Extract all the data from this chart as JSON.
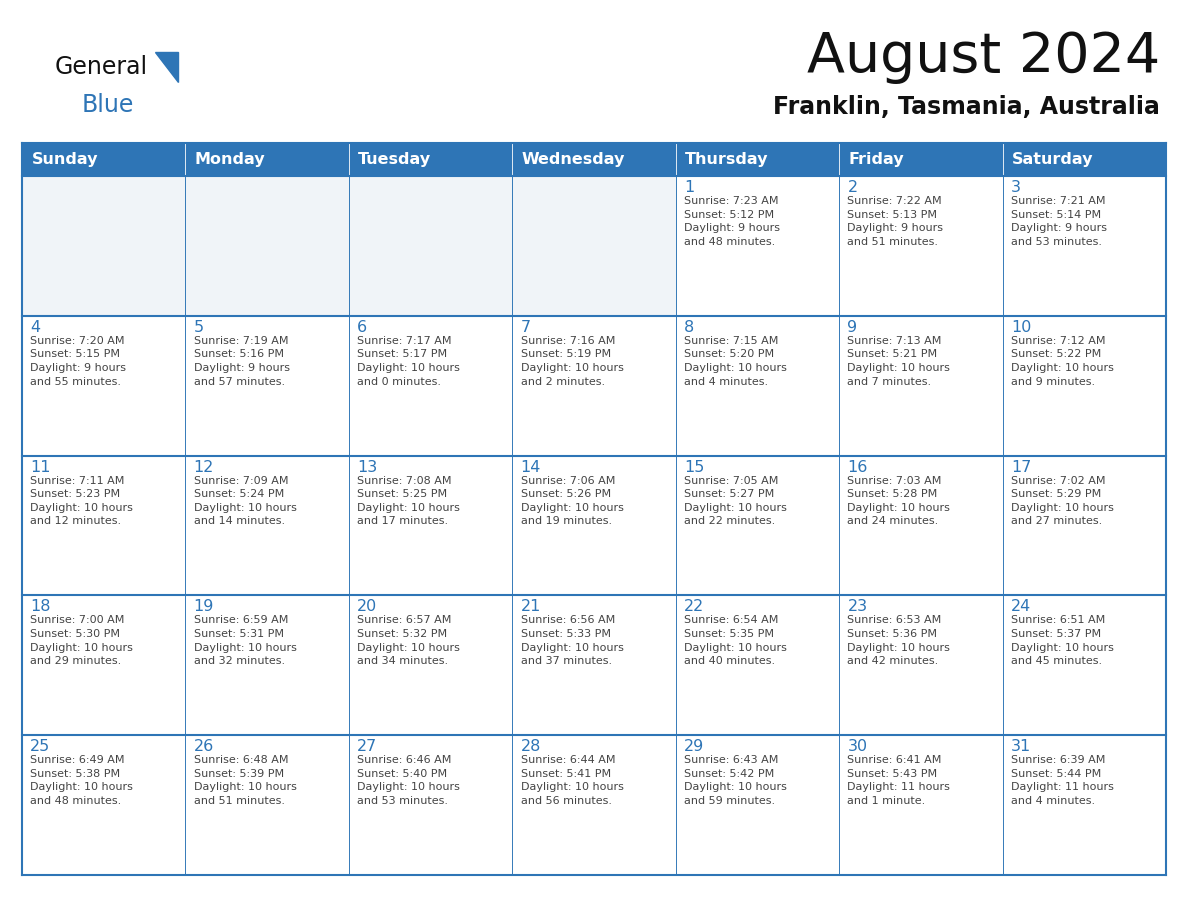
{
  "title": "August 2024",
  "subtitle": "Franklin, Tasmania, Australia",
  "days_of_week": [
    "Sunday",
    "Monday",
    "Tuesday",
    "Wednesday",
    "Thursday",
    "Friday",
    "Saturday"
  ],
  "header_bg": "#2E75B6",
  "header_text": "#FFFFFF",
  "cell_bg": "#FFFFFF",
  "cell_border": "#2E75B6",
  "day_num_color": "#2E75B6",
  "cell_text_color": "#444444",
  "title_color": "#111111",
  "subtitle_color": "#111111",
  "logo_general_color": "#111111",
  "logo_blue_color": "#2E75B6",
  "logo_triangle_color": "#2E75B6",
  "weeks": [
    [
      {
        "day": null,
        "text": ""
      },
      {
        "day": null,
        "text": ""
      },
      {
        "day": null,
        "text": ""
      },
      {
        "day": null,
        "text": ""
      },
      {
        "day": 1,
        "text": "Sunrise: 7:23 AM\nSunset: 5:12 PM\nDaylight: 9 hours\nand 48 minutes."
      },
      {
        "day": 2,
        "text": "Sunrise: 7:22 AM\nSunset: 5:13 PM\nDaylight: 9 hours\nand 51 minutes."
      },
      {
        "day": 3,
        "text": "Sunrise: 7:21 AM\nSunset: 5:14 PM\nDaylight: 9 hours\nand 53 minutes."
      }
    ],
    [
      {
        "day": 4,
        "text": "Sunrise: 7:20 AM\nSunset: 5:15 PM\nDaylight: 9 hours\nand 55 minutes."
      },
      {
        "day": 5,
        "text": "Sunrise: 7:19 AM\nSunset: 5:16 PM\nDaylight: 9 hours\nand 57 minutes."
      },
      {
        "day": 6,
        "text": "Sunrise: 7:17 AM\nSunset: 5:17 PM\nDaylight: 10 hours\nand 0 minutes."
      },
      {
        "day": 7,
        "text": "Sunrise: 7:16 AM\nSunset: 5:19 PM\nDaylight: 10 hours\nand 2 minutes."
      },
      {
        "day": 8,
        "text": "Sunrise: 7:15 AM\nSunset: 5:20 PM\nDaylight: 10 hours\nand 4 minutes."
      },
      {
        "day": 9,
        "text": "Sunrise: 7:13 AM\nSunset: 5:21 PM\nDaylight: 10 hours\nand 7 minutes."
      },
      {
        "day": 10,
        "text": "Sunrise: 7:12 AM\nSunset: 5:22 PM\nDaylight: 10 hours\nand 9 minutes."
      }
    ],
    [
      {
        "day": 11,
        "text": "Sunrise: 7:11 AM\nSunset: 5:23 PM\nDaylight: 10 hours\nand 12 minutes."
      },
      {
        "day": 12,
        "text": "Sunrise: 7:09 AM\nSunset: 5:24 PM\nDaylight: 10 hours\nand 14 minutes."
      },
      {
        "day": 13,
        "text": "Sunrise: 7:08 AM\nSunset: 5:25 PM\nDaylight: 10 hours\nand 17 minutes."
      },
      {
        "day": 14,
        "text": "Sunrise: 7:06 AM\nSunset: 5:26 PM\nDaylight: 10 hours\nand 19 minutes."
      },
      {
        "day": 15,
        "text": "Sunrise: 7:05 AM\nSunset: 5:27 PM\nDaylight: 10 hours\nand 22 minutes."
      },
      {
        "day": 16,
        "text": "Sunrise: 7:03 AM\nSunset: 5:28 PM\nDaylight: 10 hours\nand 24 minutes."
      },
      {
        "day": 17,
        "text": "Sunrise: 7:02 AM\nSunset: 5:29 PM\nDaylight: 10 hours\nand 27 minutes."
      }
    ],
    [
      {
        "day": 18,
        "text": "Sunrise: 7:00 AM\nSunset: 5:30 PM\nDaylight: 10 hours\nand 29 minutes."
      },
      {
        "day": 19,
        "text": "Sunrise: 6:59 AM\nSunset: 5:31 PM\nDaylight: 10 hours\nand 32 minutes."
      },
      {
        "day": 20,
        "text": "Sunrise: 6:57 AM\nSunset: 5:32 PM\nDaylight: 10 hours\nand 34 minutes."
      },
      {
        "day": 21,
        "text": "Sunrise: 6:56 AM\nSunset: 5:33 PM\nDaylight: 10 hours\nand 37 minutes."
      },
      {
        "day": 22,
        "text": "Sunrise: 6:54 AM\nSunset: 5:35 PM\nDaylight: 10 hours\nand 40 minutes."
      },
      {
        "day": 23,
        "text": "Sunrise: 6:53 AM\nSunset: 5:36 PM\nDaylight: 10 hours\nand 42 minutes."
      },
      {
        "day": 24,
        "text": "Sunrise: 6:51 AM\nSunset: 5:37 PM\nDaylight: 10 hours\nand 45 minutes."
      }
    ],
    [
      {
        "day": 25,
        "text": "Sunrise: 6:49 AM\nSunset: 5:38 PM\nDaylight: 10 hours\nand 48 minutes."
      },
      {
        "day": 26,
        "text": "Sunrise: 6:48 AM\nSunset: 5:39 PM\nDaylight: 10 hours\nand 51 minutes."
      },
      {
        "day": 27,
        "text": "Sunrise: 6:46 AM\nSunset: 5:40 PM\nDaylight: 10 hours\nand 53 minutes."
      },
      {
        "day": 28,
        "text": "Sunrise: 6:44 AM\nSunset: 5:41 PM\nDaylight: 10 hours\nand 56 minutes."
      },
      {
        "day": 29,
        "text": "Sunrise: 6:43 AM\nSunset: 5:42 PM\nDaylight: 10 hours\nand 59 minutes."
      },
      {
        "day": 30,
        "text": "Sunrise: 6:41 AM\nSunset: 5:43 PM\nDaylight: 11 hours\nand 1 minute."
      },
      {
        "day": 31,
        "text": "Sunrise: 6:39 AM\nSunset: 5:44 PM\nDaylight: 11 hours\nand 4 minutes."
      }
    ]
  ]
}
